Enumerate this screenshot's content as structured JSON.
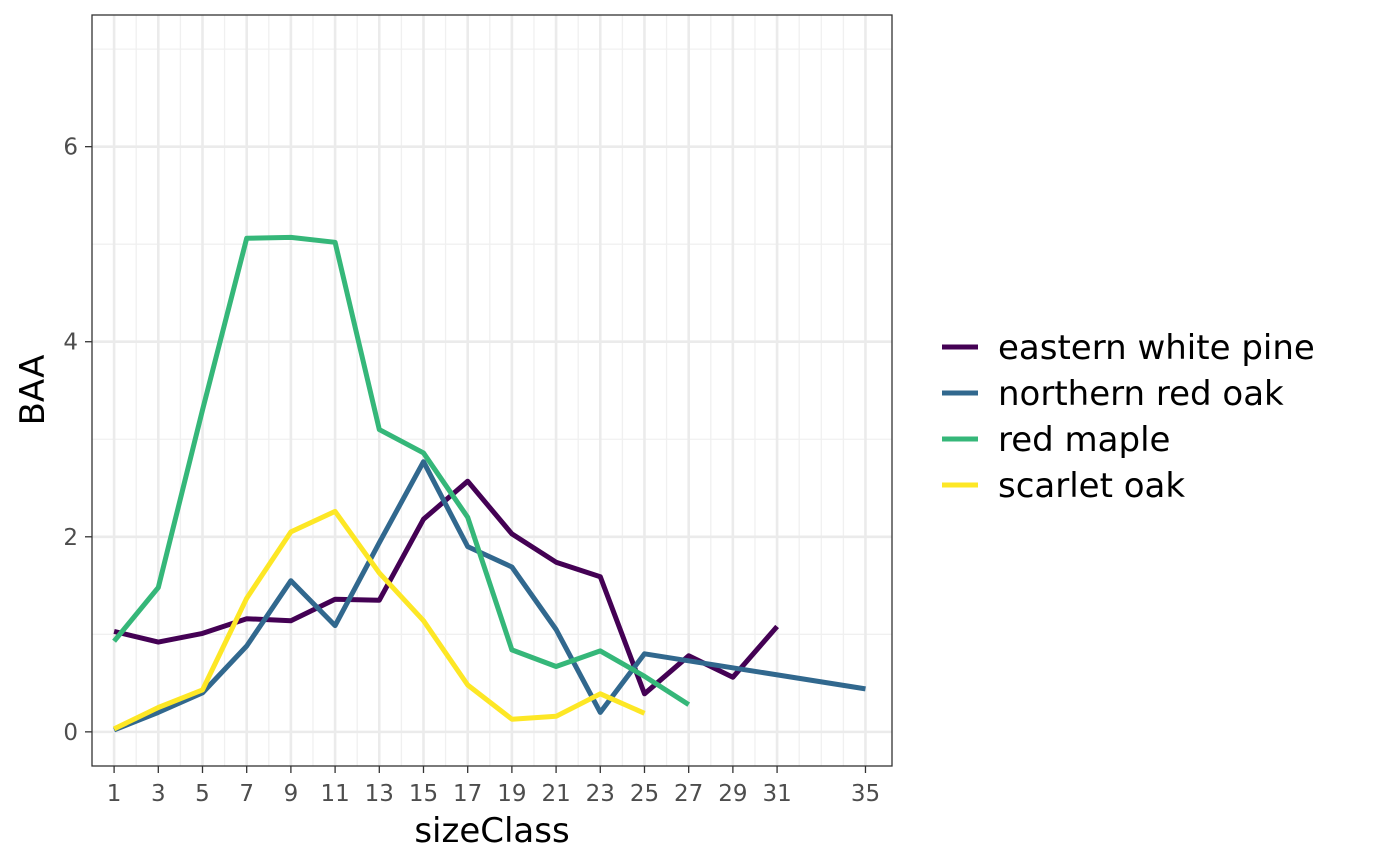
{
  "chart_data": {
    "type": "line",
    "xlabel": "sizeClass",
    "ylabel": "BAA",
    "xlim": [
      0,
      36.2
    ],
    "ylim": [
      -0.35,
      7.35
    ],
    "x_ticks": [
      1,
      3,
      5,
      7,
      9,
      11,
      13,
      15,
      17,
      19,
      21,
      23,
      25,
      27,
      29,
      31,
      35
    ],
    "x_tick_labels": [
      "1",
      "3",
      "5",
      "7",
      "9",
      "11",
      "13",
      "15",
      "17",
      "19",
      "21",
      "23",
      "25",
      "27",
      "29",
      "31",
      "35"
    ],
    "x_minor_grid": [
      2,
      4,
      6,
      8,
      10,
      12,
      14,
      16,
      18,
      20,
      22,
      24,
      26,
      28,
      30,
      32,
      33,
      34
    ],
    "y_ticks": [
      0,
      2,
      4,
      6
    ],
    "y_tick_labels": [
      "0",
      "2",
      "4",
      "6"
    ],
    "y_minor_grid": [
      1,
      3,
      5,
      7
    ],
    "grid": true,
    "legend_position": "right",
    "series": [
      {
        "name": "eastern white pine",
        "color": "#440154",
        "x": [
          1,
          3,
          5,
          7,
          9,
          11,
          13,
          15,
          17,
          19,
          21,
          23,
          25,
          27,
          29,
          31
        ],
        "y": [
          1.03,
          0.92,
          1.01,
          1.16,
          1.14,
          1.36,
          1.35,
          2.18,
          2.57,
          2.03,
          1.74,
          1.59,
          0.39,
          0.78,
          0.56,
          1.08
        ]
      },
      {
        "name": "northern red oak",
        "color": "#31688E",
        "x": [
          1,
          3,
          5,
          7,
          9,
          11,
          13,
          15,
          17,
          19,
          21,
          23,
          25,
          35
        ],
        "y": [
          0.02,
          0.2,
          0.4,
          0.88,
          1.55,
          1.09,
          1.94,
          2.77,
          1.9,
          1.69,
          1.05,
          0.2,
          0.8,
          0.44
        ]
      },
      {
        "name": "red maple",
        "color": "#35B779",
        "x": [
          1,
          3,
          5,
          7,
          9,
          11,
          13,
          15,
          17,
          19,
          21,
          23,
          25,
          27
        ],
        "y": [
          0.93,
          1.48,
          3.3,
          5.06,
          5.07,
          5.02,
          3.1,
          2.86,
          2.2,
          0.84,
          0.67,
          0.83,
          0.57,
          0.28
        ]
      },
      {
        "name": "scarlet oak",
        "color": "#FDE725",
        "x": [
          1,
          3,
          5,
          7,
          9,
          11,
          13,
          15,
          17,
          19,
          21,
          23,
          25
        ],
        "y": [
          0.03,
          0.25,
          0.43,
          1.37,
          2.05,
          2.26,
          1.63,
          1.14,
          0.48,
          0.13,
          0.16,
          0.39,
          0.19
        ]
      }
    ]
  }
}
